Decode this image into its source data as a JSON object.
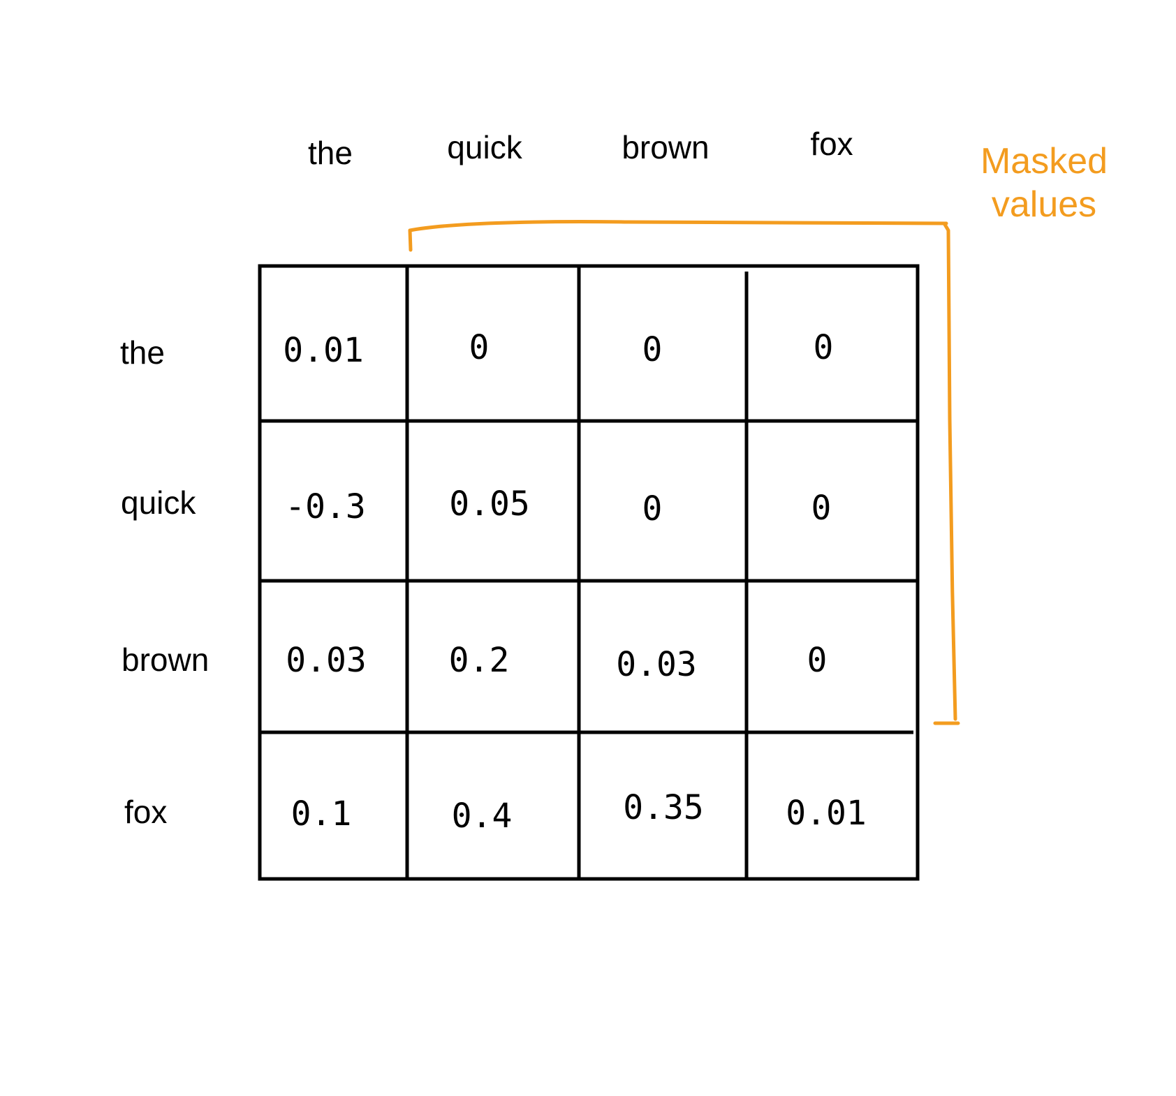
{
  "tokens": {
    "columns": [
      "the",
      "quick",
      "brown",
      "fox"
    ],
    "rows": [
      "the",
      "quick",
      "brown",
      "fox"
    ]
  },
  "annotation": {
    "text": "Masked values",
    "color": "#f39c1f"
  },
  "matrix": [
    [
      "0.01",
      "0",
      "0",
      "0"
    ],
    [
      "-0.3",
      "0.05",
      "0",
      "0"
    ],
    [
      "0.03",
      "0.2",
      "0.03",
      "0"
    ],
    [
      "0.1",
      "0.4",
      "0.35",
      "0.01"
    ]
  ],
  "colors": {
    "grid": "#000000",
    "bracket": "#f39c1f"
  }
}
